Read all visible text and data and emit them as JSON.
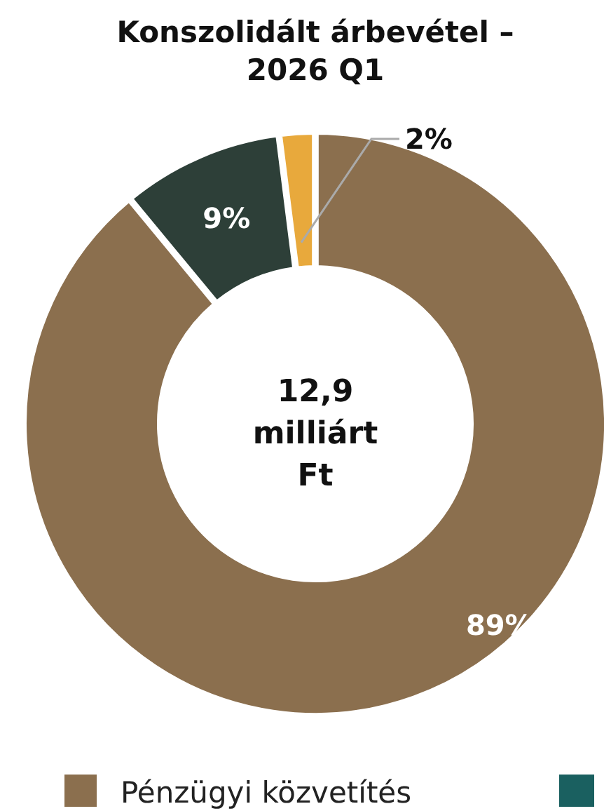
{
  "chart_data": {
    "type": "donut",
    "title": "Konszolidált árbevétel – 2026 Q1",
    "categories": [
      "Pénzügyi közvetítés",
      null,
      null
    ],
    "values": [
      89,
      9,
      2
    ],
    "colors": [
      "#8b6f4e",
      "#2d3f38",
      "#e8a93c"
    ],
    "value_labels": [
      "89%",
      "9%",
      "2%"
    ],
    "annotations": [
      "12,9 milliárt Ft"
    ],
    "legend": "bottom"
  }
}
